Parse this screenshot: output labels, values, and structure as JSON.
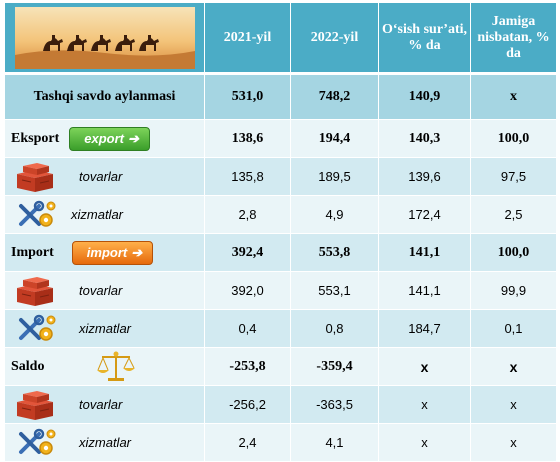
{
  "header": {
    "col_2021": "2021-yil",
    "col_2022": "2022-yil",
    "col_growth": "O‘sish sur’ati, % da",
    "col_share": "Jamiga nisbatan, % da"
  },
  "rows": [
    {
      "label": "Tashqi savdo aylanmasi",
      "y2021": "531,0",
      "y2022": "748,2",
      "growth": "140,9",
      "share": "x"
    },
    {
      "label": "Eksport",
      "badge": "export",
      "y2021": "138,6",
      "y2022": "194,4",
      "growth": "140,3",
      "share": "100,0"
    },
    {
      "label": "tovarlar",
      "y2021": "135,8",
      "y2022": "189,5",
      "growth": "139,6",
      "share": "97,5"
    },
    {
      "label": "xizmatlar",
      "y2021": "2,8",
      "y2022": "4,9",
      "growth": "172,4",
      "share": "2,5"
    },
    {
      "label": "Import",
      "badge": "import",
      "y2021": "392,4",
      "y2022": "553,8",
      "growth": "141,1",
      "share": "100,0"
    },
    {
      "label": "tovarlar",
      "y2021": "392,0",
      "y2022": "553,1",
      "growth": "141,1",
      "share": "99,9"
    },
    {
      "label": "xizmatlar",
      "y2021": "0,4",
      "y2022": "0,8",
      "growth": "184,7",
      "share": "0,1"
    },
    {
      "label": "Saldo",
      "y2021": "-253,8",
      "y2022": "-359,4",
      "growth": "x",
      "share": "x"
    },
    {
      "label": "tovarlar",
      "y2021": "-256,2",
      "y2022": "-363,5",
      "growth": "x",
      "share": "x"
    },
    {
      "label": "xizmatlar",
      "y2021": "2,4",
      "y2022": "4,1",
      "growth": "x",
      "share": "x"
    }
  ],
  "icons": {
    "banner": "camel-caravan-banner",
    "goods": "boxes-icon",
    "services": "tools-gear-icon",
    "balance": "scales-icon"
  },
  "colors": {
    "header_bg": "#4bacc6",
    "total_bg": "#a5d5e2",
    "row_even": "#d2eaf1",
    "row_odd": "#eaf5f8"
  }
}
